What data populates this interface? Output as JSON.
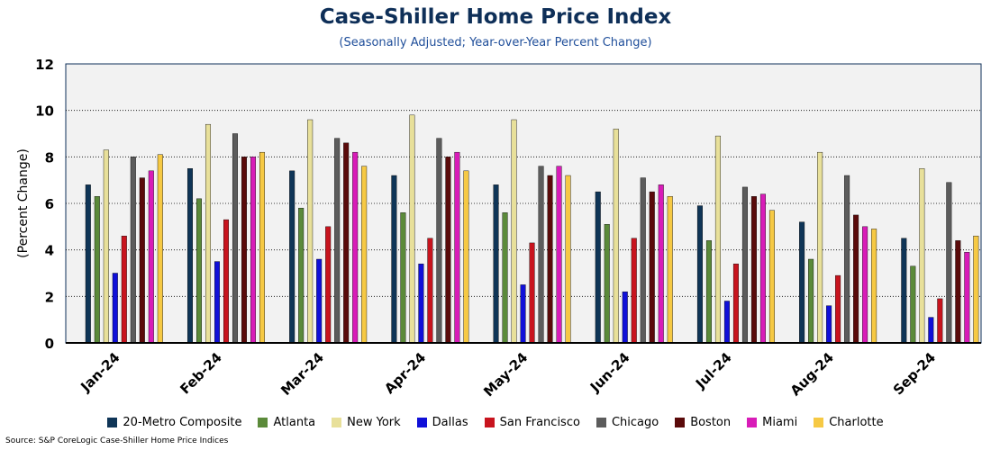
{
  "chart_data": {
    "type": "bar",
    "title": "Case-Shiller Home Price Index",
    "subtitle": "(Seasonally Adjusted; Year-over-Year Percent Change)",
    "ylabel": "(Percent Change)",
    "ylim": [
      0,
      12
    ],
    "yticks": [
      0,
      2,
      4,
      6,
      8,
      10,
      12
    ],
    "grid": true,
    "legend_position": "bottom",
    "source": "Source: S&P CoreLogic Case-Shiller Home Price Indices",
    "categories": [
      "Jan-24",
      "Feb-24",
      "Mar-24",
      "Apr-24",
      "May-24",
      "Jun-24",
      "Jul-24",
      "Aug-24",
      "Sep-24"
    ],
    "series": [
      {
        "name": "20-Metro Composite",
        "color": "#0f3557",
        "values": [
          6.8,
          7.5,
          7.4,
          7.2,
          6.8,
          6.5,
          5.9,
          5.2,
          4.5
        ]
      },
      {
        "name": "Atlanta",
        "color": "#5b8a3a",
        "values": [
          6.3,
          6.2,
          5.8,
          5.6,
          5.6,
          5.1,
          4.4,
          3.6,
          3.3
        ]
      },
      {
        "name": "New York",
        "color": "#e8e09a",
        "values": [
          8.3,
          9.4,
          9.6,
          9.8,
          9.6,
          9.2,
          8.9,
          8.2,
          7.5
        ]
      },
      {
        "name": "Dallas",
        "color": "#1010d8",
        "values": [
          3.0,
          3.5,
          3.6,
          3.4,
          2.5,
          2.2,
          1.8,
          1.6,
          1.1
        ]
      },
      {
        "name": "San Francisco",
        "color": "#c8141e",
        "values": [
          4.6,
          5.3,
          5.0,
          4.5,
          4.3,
          4.5,
          3.4,
          2.9,
          1.9
        ]
      },
      {
        "name": "Chicago",
        "color": "#5c5c5c",
        "values": [
          8.0,
          9.0,
          8.8,
          8.8,
          7.6,
          7.1,
          6.7,
          7.2,
          6.9
        ]
      },
      {
        "name": "Boston",
        "color": "#5a0a0a",
        "values": [
          7.1,
          8.0,
          8.6,
          8.0,
          7.2,
          6.5,
          6.3,
          5.5,
          4.4
        ]
      },
      {
        "name": "Miami",
        "color": "#d81cb8",
        "values": [
          7.4,
          8.0,
          8.2,
          8.2,
          7.6,
          6.8,
          6.4,
          5.0,
          3.9
        ]
      },
      {
        "name": "Charlotte",
        "color": "#f6c944",
        "values": [
          8.1,
          8.2,
          7.6,
          7.4,
          7.2,
          6.3,
          5.7,
          4.9,
          4.6
        ]
      }
    ]
  }
}
